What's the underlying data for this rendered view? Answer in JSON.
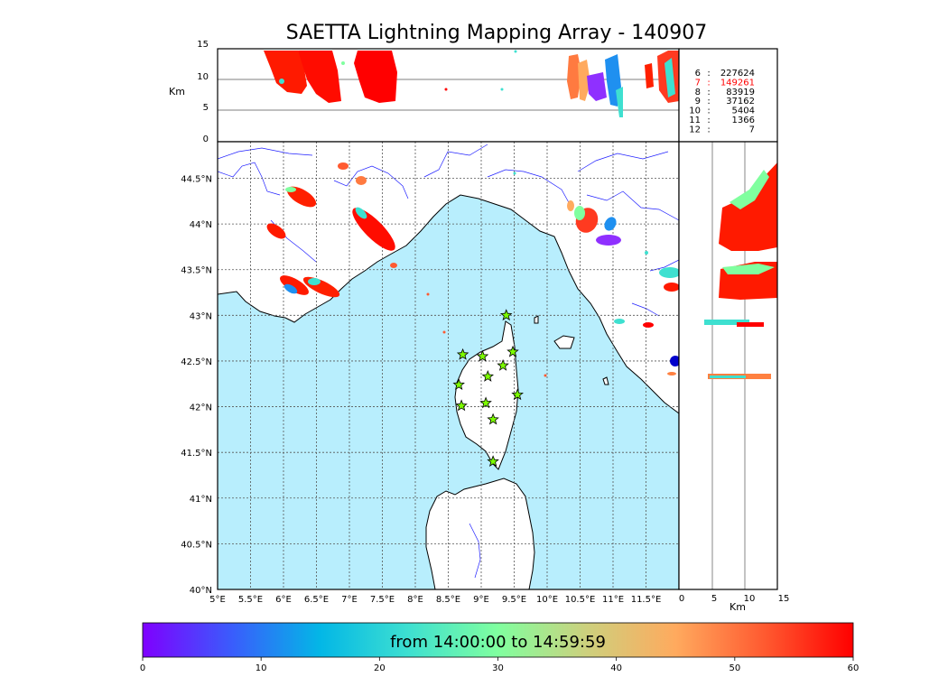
{
  "title": "SAETTA Lightning Mapping Array - 140907",
  "altitude_panel": {
    "ylabel": "Km",
    "ticks": [
      "0",
      "5",
      "10",
      "15"
    ]
  },
  "side_panel": {
    "xlabel": "Km",
    "ticks": [
      "0",
      "5",
      "10",
      "15"
    ]
  },
  "stats": [
    {
      "min": "6",
      "count": "227624",
      "color": "#000000"
    },
    {
      "min": "7",
      "count": "149261",
      "color": "#ff0000"
    },
    {
      "min": "8",
      "count": "83919",
      "color": "#000000"
    },
    {
      "min": "9",
      "count": "37162",
      "color": "#000000"
    },
    {
      "min": "10",
      "count": "5404",
      "color": "#000000"
    },
    {
      "min": "11",
      "count": "1366",
      "color": "#000000"
    },
    {
      "min": "12",
      "count": "7",
      "color": "#000000"
    }
  ],
  "map": {
    "lon_ticks": [
      "5°E",
      "5.5°E",
      "6°E",
      "6.5°E",
      "7°E",
      "7.5°E",
      "8°E",
      "8.5°E",
      "9°E",
      "9.5°E",
      "10°E",
      "10.5°E",
      "11°E",
      "11.5°E"
    ],
    "lat_ticks": [
      "40°N",
      "40.5°N",
      "41°N",
      "41.5°N",
      "42°N",
      "42.5°N",
      "43°N",
      "43.5°N",
      "44°N",
      "44.5°N"
    ],
    "sea_color": "#b8eefd",
    "land_color": "#ffffff",
    "station_color": "#7cfc00",
    "stations": [
      {
        "lon": 9.38,
        "lat": 43.0
      },
      {
        "lon": 8.72,
        "lat": 42.57
      },
      {
        "lon": 9.02,
        "lat": 42.55
      },
      {
        "lon": 9.48,
        "lat": 42.6
      },
      {
        "lon": 9.33,
        "lat": 42.45
      },
      {
        "lon": 9.1,
        "lat": 42.33
      },
      {
        "lon": 8.66,
        "lat": 42.24
      },
      {
        "lon": 9.55,
        "lat": 42.13
      },
      {
        "lon": 8.7,
        "lat": 42.01
      },
      {
        "lon": 9.07,
        "lat": 42.04
      },
      {
        "lon": 9.18,
        "lat": 41.86
      },
      {
        "lon": 9.18,
        "lat": 41.4
      }
    ]
  },
  "colorbar": {
    "label": "from 14:00:00 to 14:59:59",
    "ticks": [
      "0",
      "10",
      "20",
      "30",
      "40",
      "50",
      "60"
    ],
    "stops": [
      "#7f00ff",
      "#3a5cfc",
      "#03b7e6",
      "#3ee0d0",
      "#80ff9f",
      "#cdd07d",
      "#ffaa5e",
      "#ff5a30",
      "#ff0000"
    ]
  }
}
